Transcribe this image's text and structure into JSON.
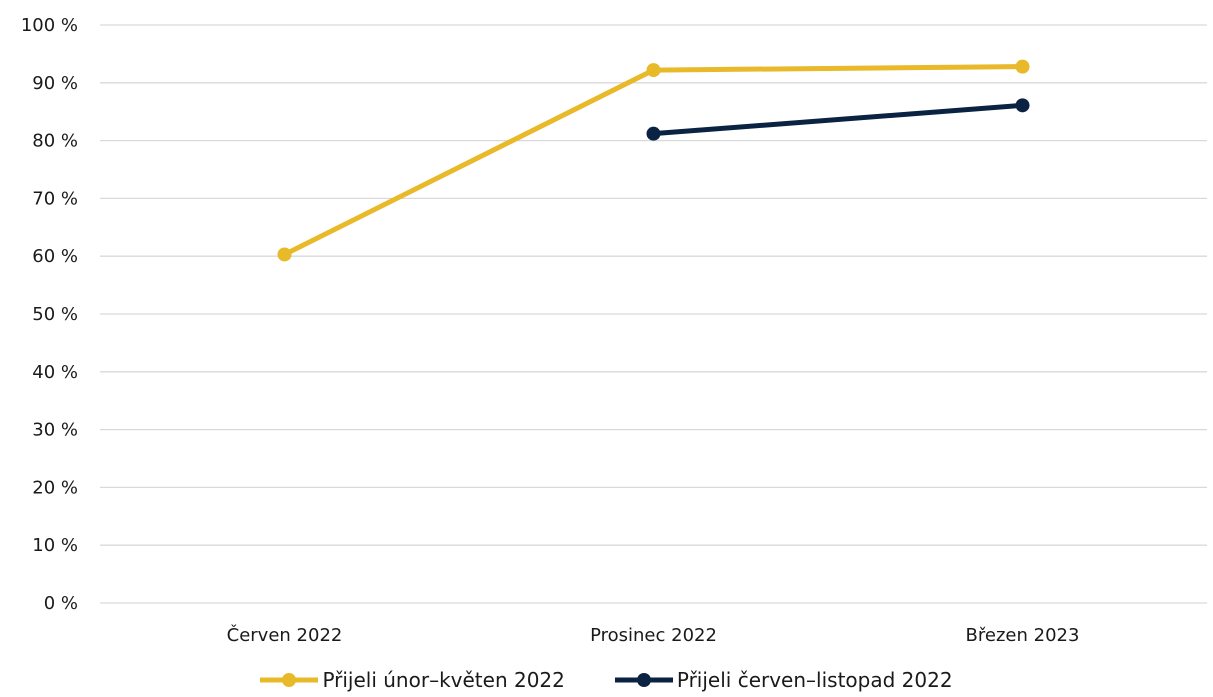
{
  "chart_data": {
    "type": "line",
    "categories": [
      "Červen 2022",
      "Prosinec 2022",
      "Březen 2023"
    ],
    "y_ticks": [
      "0 %",
      "10 %",
      "20 %",
      "30 %",
      "40 %",
      "50 %",
      "60 %",
      "70 %",
      "80 %",
      "90 %",
      "100 %"
    ],
    "ylim": [
      0,
      100
    ],
    "grid": true,
    "legend_position": "bottom",
    "series": [
      {
        "name": "Přijeli únor–květen 2022",
        "color": "#E8B928",
        "values": [
          60.3,
          92.2,
          92.8
        ]
      },
      {
        "name": "Přijeli červen–listopad 2022",
        "color": "#0B2343",
        "values": [
          null,
          81.2,
          86.1
        ]
      }
    ]
  }
}
